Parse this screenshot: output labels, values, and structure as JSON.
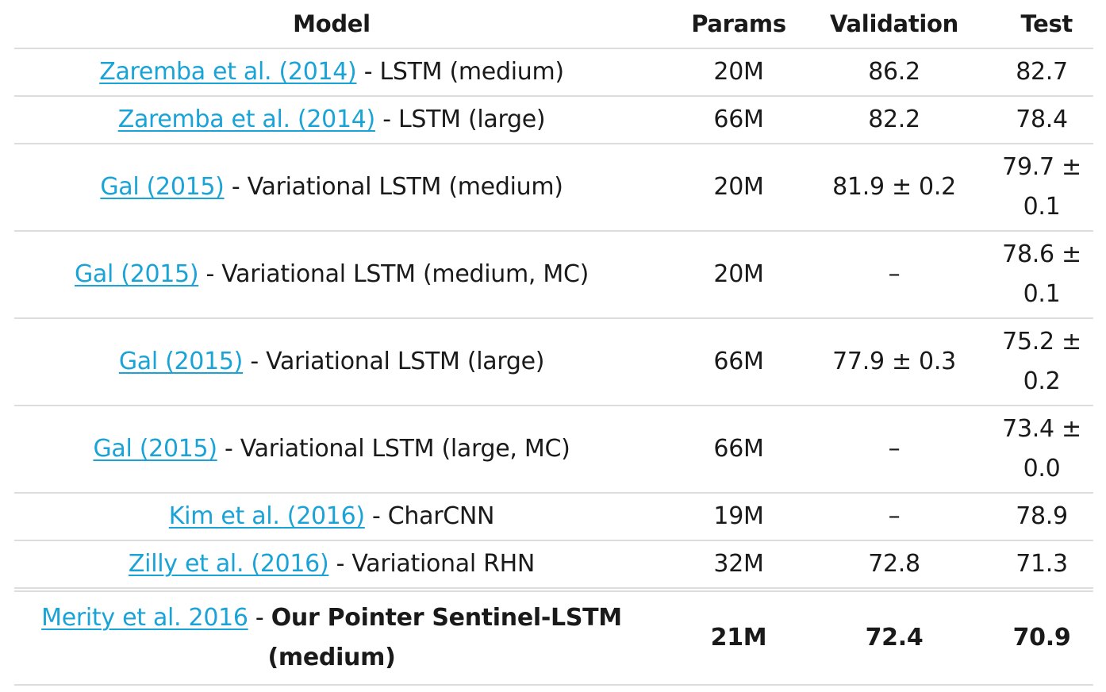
{
  "table": {
    "headers": [
      "Model",
      "Params",
      "Validation",
      "Test"
    ],
    "rows": [
      {
        "ref": "Zaremba et al. (2014)",
        "desc": "LSTM (medium)",
        "params": "20M",
        "validation": "86.2",
        "test": "82.7"
      },
      {
        "ref": "Zaremba et al. (2014)",
        "desc": "LSTM (large)",
        "params": "66M",
        "validation": "82.2",
        "test": "78.4"
      },
      {
        "ref": "Gal (2015)",
        "desc": "Variational LSTM (medium)",
        "params": "20M",
        "validation": "81.9 ± 0.2",
        "test": "79.7 ± 0.1"
      },
      {
        "ref": "Gal (2015)",
        "desc": "Variational LSTM (medium, MC)",
        "params": "20M",
        "validation": "–",
        "test": "78.6 ± 0.1"
      },
      {
        "ref": "Gal (2015)",
        "desc": "Variational LSTM (large)",
        "params": "66M",
        "validation": "77.9 ± 0.3",
        "test": "75.2 ± 0.2"
      },
      {
        "ref": "Gal (2015)",
        "desc": "Variational LSTM (large, MC)",
        "params": "66M",
        "validation": "–",
        "test": "73.4 ± 0.0"
      },
      {
        "ref": "Kim et al. (2016)",
        "desc": "CharCNN",
        "params": "19M",
        "validation": "–",
        "test": "78.9"
      },
      {
        "ref": "Zilly et al. (2016)",
        "desc": "Variational RHN",
        "params": "32M",
        "validation": "72.8",
        "test": "71.3"
      },
      {
        "ref": "Merity et al. 2016",
        "desc": "Our Pointer Sentinel-LSTM (medium)",
        "params": "21M",
        "validation": "72.4",
        "test": "70.9"
      }
    ],
    "separator": " - ",
    "link_color": "#1aa3d6",
    "border_color": "#dddddd"
  }
}
